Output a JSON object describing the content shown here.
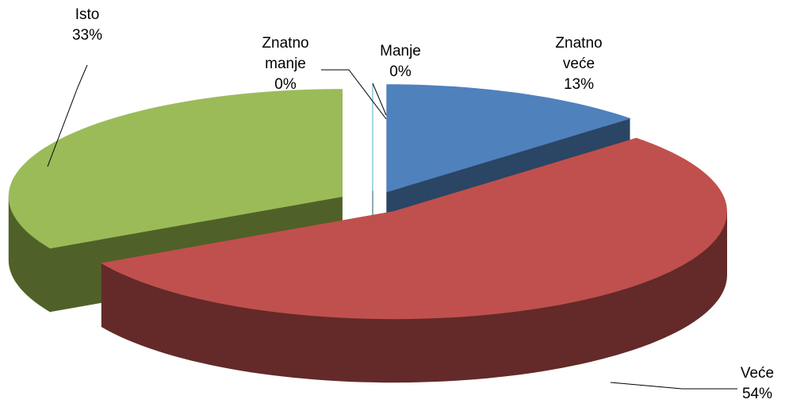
{
  "chart_data": {
    "type": "pie3d",
    "categories": [
      "Znatno veće",
      "Veće",
      "Isto",
      "Znatno manje",
      "Manje"
    ],
    "values": [
      13,
      54,
      33,
      0,
      0
    ],
    "value_labels": [
      "13%",
      "54%",
      "33%",
      "0%",
      "0%"
    ],
    "colors": [
      "#4f81bd",
      "#c0504d",
      "#9bbb59",
      "#8064a2",
      "#4bacc6"
    ],
    "side_colors": [
      "#2b4564",
      "#632a29",
      "#4f6128",
      "#403152",
      "#215968"
    ]
  }
}
